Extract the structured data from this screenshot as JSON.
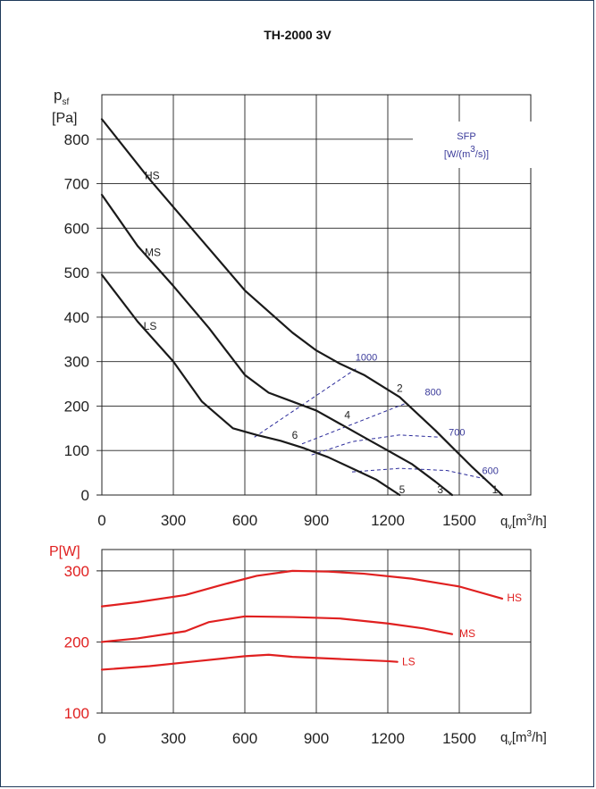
{
  "title": "TH-2000 3V",
  "chart_data": [
    {
      "type": "line",
      "title": "TH-2000 3V",
      "ylabel_main": "p",
      "ylabel_sub": "sf",
      "ylabel_unit": "[Pa]",
      "xlabel_main": "q",
      "xlabel_sub": "v",
      "xlabel_unit_pre": "[m",
      "xlabel_unit_sup": "3",
      "xlabel_unit_post": "/h]",
      "xlim": [
        0,
        1800
      ],
      "ylim": [
        0,
        900
      ],
      "xticks": [
        0,
        300,
        600,
        900,
        1200,
        1500
      ],
      "yticks": [
        0,
        100,
        200,
        300,
        400,
        500,
        600,
        700,
        800
      ],
      "grid": true,
      "series": [
        {
          "name": "HS",
          "color": "#1a1a1a",
          "x": [
            0,
            200,
            400,
            600,
            800,
            900,
            1000,
            1100,
            1250,
            1400,
            1550,
            1680
          ],
          "y": [
            845,
            710,
            585,
            460,
            365,
            325,
            295,
            270,
            220,
            145,
            65,
            0
          ]
        },
        {
          "name": "MS",
          "color": "#1a1a1a",
          "x": [
            0,
            150,
            300,
            450,
            600,
            700,
            800,
            900,
            1000,
            1100,
            1200,
            1300,
            1400,
            1470
          ],
          "y": [
            675,
            560,
            470,
            375,
            270,
            230,
            210,
            190,
            160,
            130,
            100,
            70,
            30,
            0
          ]
        },
        {
          "name": "LS",
          "color": "#1a1a1a",
          "x": [
            0,
            150,
            300,
            420,
            550,
            650,
            750,
            850,
            950,
            1050,
            1150,
            1250
          ],
          "y": [
            495,
            390,
            300,
            210,
            150,
            135,
            122,
            105,
            85,
            60,
            35,
            0
          ]
        }
      ],
      "series_labels": [
        {
          "text": "HS",
          "x": 180,
          "y": 718
        },
        {
          "text": "MS",
          "x": 180,
          "y": 545
        },
        {
          "text": "LS",
          "x": 175,
          "y": 380
        }
      ],
      "sfp_title": "SFP",
      "sfp_unit_pre": "[W/(m",
      "sfp_unit_sup": "3",
      "sfp_unit_post": "/s)]",
      "sfp_lines": [
        {
          "label": "1000",
          "x": [
            640,
            1070
          ],
          "y": [
            130,
            285
          ],
          "label_x": 1110,
          "label_y": 310
        },
        {
          "label": "800",
          "x": [
            840,
            1270
          ],
          "y": [
            115,
            205
          ],
          "label_x": 1390,
          "label_y": 232
        },
        {
          "label": "700",
          "x": [
            880,
            1050,
            1250,
            1420
          ],
          "y": [
            90,
            120,
            135,
            130
          ],
          "label_x": 1490,
          "label_y": 142
        },
        {
          "label": "600",
          "x": [
            1050,
            1250,
            1450,
            1620
          ],
          "y": [
            52,
            60,
            55,
            35
          ],
          "label_x": 1630,
          "label_y": 55
        }
      ],
      "points": [
        {
          "label": "1",
          "x": 1650,
          "y": 12
        },
        {
          "label": "2",
          "x": 1250,
          "y": 240
        },
        {
          "label": "3",
          "x": 1420,
          "y": 12
        },
        {
          "label": "4",
          "x": 1030,
          "y": 180
        },
        {
          "label": "5",
          "x": 1260,
          "y": 12
        },
        {
          "label": "6",
          "x": 810,
          "y": 135
        }
      ]
    },
    {
      "type": "line",
      "ylabel": "P[W]",
      "xlabel_main": "q",
      "xlabel_sub": "v",
      "xlabel_unit_pre": "[m",
      "xlabel_unit_sup": "3",
      "xlabel_unit_post": "/h]",
      "xlim": [
        0,
        1800
      ],
      "ylim": [
        100,
        330
      ],
      "xticks": [
        0,
        300,
        600,
        900,
        1200,
        1500
      ],
      "yticks": [
        100,
        200,
        300
      ],
      "grid": true,
      "series": [
        {
          "name": "HS",
          "color": "#e02020",
          "x": [
            0,
            150,
            350,
            500,
            650,
            800,
            950,
            1100,
            1300,
            1500,
            1680
          ],
          "y": [
            250,
            256,
            266,
            280,
            293,
            300,
            299,
            296,
            289,
            278,
            261
          ]
        },
        {
          "name": "MS",
          "color": "#e02020",
          "x": [
            0,
            150,
            350,
            450,
            600,
            800,
            1000,
            1200,
            1350,
            1470
          ],
          "y": [
            200,
            205,
            215,
            228,
            236,
            235,
            233,
            226,
            219,
            211
          ]
        },
        {
          "name": "LS",
          "color": "#e02020",
          "x": [
            0,
            200,
            400,
            600,
            700,
            800,
            1000,
            1200,
            1240
          ],
          "y": [
            161,
            166,
            173,
            180,
            182,
            179,
            176,
            173,
            172
          ]
        }
      ],
      "series_labels": [
        {
          "text": "HS",
          "x": 1700,
          "y": 262
        },
        {
          "text": "MS",
          "x": 1500,
          "y": 212
        },
        {
          "text": "LS",
          "x": 1260,
          "y": 172
        }
      ]
    }
  ]
}
